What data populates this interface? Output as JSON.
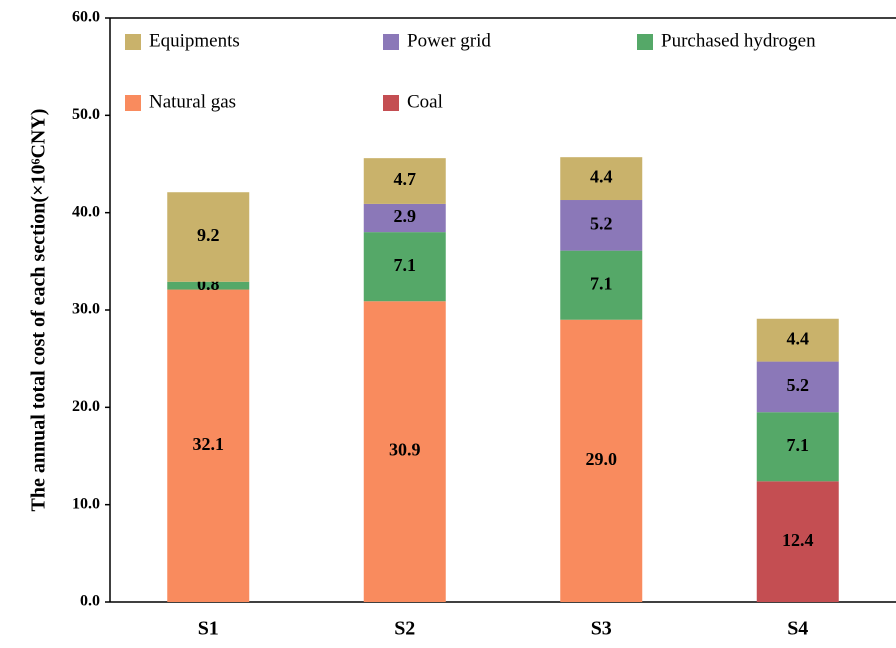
{
  "chart_data": {
    "type": "stacked-bar",
    "y_label": "The annual total cost of each section(×10⁶CNY)",
    "categories": [
      "S1",
      "S2",
      "S3",
      "S4"
    ],
    "series": [
      {
        "name": "Natural gas",
        "color": "#f98b5e",
        "values": [
          32.1,
          30.9,
          29.0,
          null
        ],
        "value_labels": [
          "32.1",
          "30.9",
          "29.0",
          null
        ]
      },
      {
        "name": "Coal",
        "color": "#c44e52",
        "values": [
          null,
          null,
          null,
          12.4
        ],
        "value_labels": [
          null,
          null,
          null,
          "12.4"
        ]
      },
      {
        "name": "Purchased hydrogen",
        "color": "#55a868",
        "values": [
          0.8,
          7.1,
          7.1,
          7.1
        ],
        "value_labels": [
          "0.8",
          "7.1",
          "7.1",
          "7.1"
        ]
      },
      {
        "name": "Power grid",
        "color": "#8b78b8",
        "values": [
          null,
          2.9,
          5.2,
          5.2
        ],
        "value_labels": [
          null,
          "2.9",
          "5.2",
          "5.2"
        ]
      },
      {
        "name": "Equipments",
        "color": "#c9b26b",
        "values": [
          9.2,
          4.7,
          4.4,
          4.4
        ],
        "value_labels": [
          "9.2",
          "4.7",
          "4.4",
          "4.4"
        ]
      }
    ],
    "ylim": [
      0,
      60
    ],
    "yticks": [
      {
        "value": 0,
        "label": "0.0"
      },
      {
        "value": 10,
        "label": "10.0"
      },
      {
        "value": 20,
        "label": "20.0"
      },
      {
        "value": 30,
        "label": "30.0"
      },
      {
        "value": 40,
        "label": "40.0"
      },
      {
        "value": 50,
        "label": "50.0"
      },
      {
        "value": 60,
        "label": "60.0"
      }
    ]
  }
}
